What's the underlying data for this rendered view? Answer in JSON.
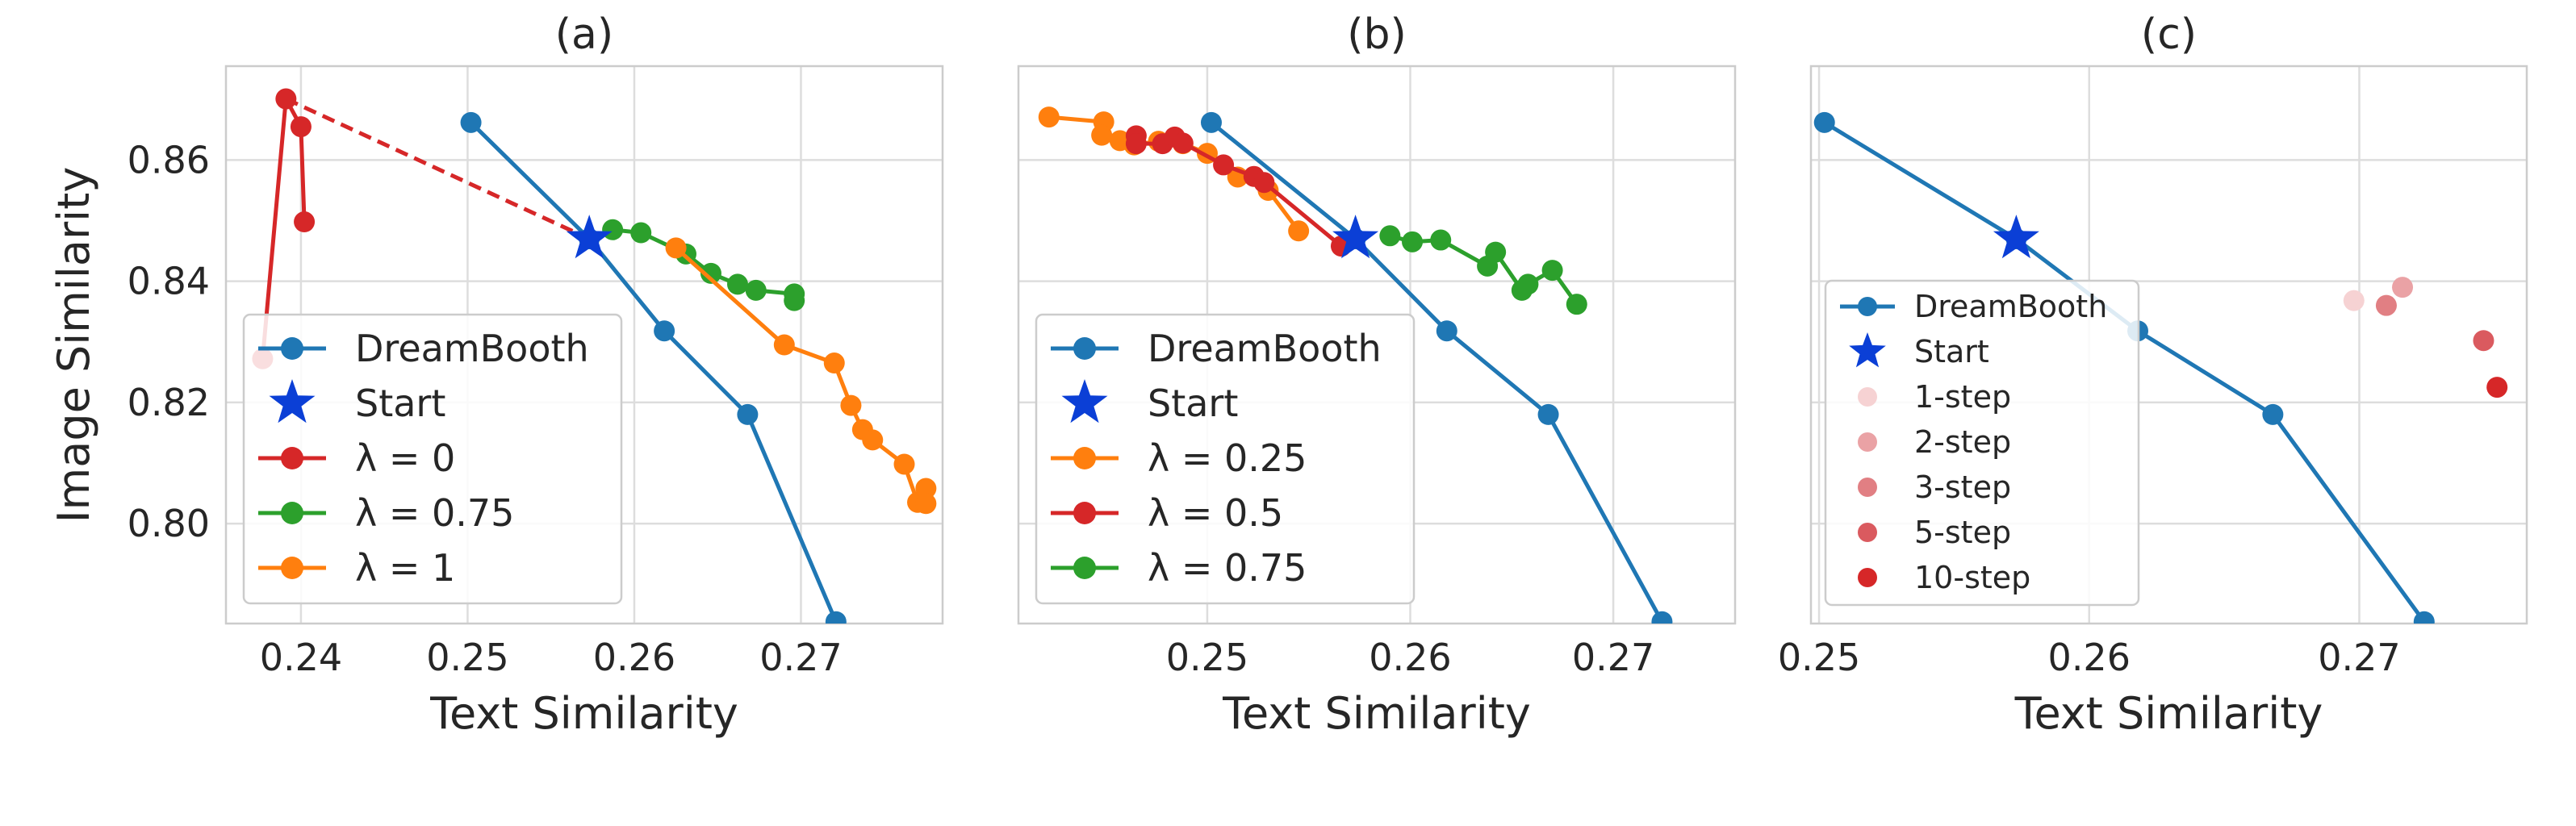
{
  "chart_data": [
    {
      "type": "line",
      "title": "(a)",
      "xlabel": "Text Similarity",
      "ylabel": "Image Similarity",
      "xlim": [
        0.2355,
        0.2785
      ],
      "ylim": [
        0.7835,
        0.8755
      ],
      "xticks": [
        0.24,
        0.25,
        0.26,
        0.27
      ],
      "xtick_labels": [
        "0.24",
        "0.25",
        "0.26",
        "0.27"
      ],
      "yticks": [
        0.8,
        0.82,
        0.84,
        0.86
      ],
      "ytick_labels": [
        "0.80",
        "0.82",
        "0.84",
        "0.86"
      ],
      "grid": true,
      "legend_position": "lower-left",
      "series": [
        {
          "name": "DreamBooth",
          "color": "#1f77b4",
          "marker": "circle",
          "x": [
            0.2502,
            0.2573,
            0.2618,
            0.2668,
            0.2721
          ],
          "y": [
            0.8662,
            0.847,
            0.8318,
            0.818,
            0.7838
          ]
        },
        {
          "name": "Start",
          "color": "#0b3fd6",
          "marker": "star",
          "x": [
            0.2573
          ],
          "y": [
            0.847
          ]
        },
        {
          "name": "λ = 0",
          "color": "#d62728",
          "marker": "circle",
          "x": [
            0.2377,
            0.2391,
            0.24,
            0.2402
          ],
          "y": [
            0.8272,
            0.8701,
            0.8655,
            0.8498
          ]
        },
        {
          "name": "λ = 0.75",
          "color": "#2ca02c",
          "marker": "circle",
          "x": [
            0.2587,
            0.2604,
            0.2631,
            0.2646,
            0.2662,
            0.2673,
            0.2696,
            0.2696
          ],
          "y": [
            0.8485,
            0.848,
            0.8445,
            0.8413,
            0.8395,
            0.8385,
            0.8379,
            0.8368
          ]
        },
        {
          "name": "λ = 1",
          "color": "#ff7f0e",
          "marker": "circle",
          "x": [
            0.2625,
            0.269,
            0.272,
            0.273,
            0.2737,
            0.2743,
            0.2762,
            0.277,
            0.2775,
            0.2775
          ],
          "y": [
            0.8455,
            0.8295,
            0.8265,
            0.8195,
            0.8155,
            0.8138,
            0.8098,
            0.8035,
            0.8058,
            0.8033
          ]
        }
      ],
      "dashed_connector": {
        "color": "#d62728",
        "from": [
          0.2391,
          0.8701
        ],
        "to": [
          0.2573,
          0.847
        ]
      }
    },
    {
      "type": "line",
      "title": "(b)",
      "xlabel": "Text Similarity",
      "ylabel": "",
      "xlim": [
        0.2407,
        0.276
      ],
      "ylim": [
        0.7835,
        0.8755
      ],
      "xticks": [
        0.25,
        0.26,
        0.27
      ],
      "xtick_labels": [
        "0.25",
        "0.26",
        "0.27"
      ],
      "yticks": [
        0.8,
        0.82,
        0.84,
        0.86
      ],
      "ytick_labels": [],
      "grid": true,
      "legend_position": "lower-left",
      "series": [
        {
          "name": "DreamBooth",
          "color": "#1f77b4",
          "marker": "circle",
          "x": [
            0.2502,
            0.2573,
            0.2618,
            0.2668,
            0.2724
          ],
          "y": [
            0.8662,
            0.847,
            0.8318,
            0.818,
            0.7838
          ]
        },
        {
          "name": "Start",
          "color": "#0b3fd6",
          "marker": "star",
          "x": [
            0.2573
          ],
          "y": [
            0.847
          ]
        },
        {
          "name": "λ = 0.25",
          "color": "#ff7f0e",
          "marker": "circle",
          "x": [
            0.2422,
            0.2449,
            0.2448,
            0.2457,
            0.2464,
            0.2476,
            0.2488,
            0.25,
            0.2515,
            0.253,
            0.2545
          ],
          "y": [
            0.8671,
            0.8663,
            0.8641,
            0.8632,
            0.8625,
            0.8631,
            0.8627,
            0.8611,
            0.8572,
            0.855,
            0.8483
          ]
        },
        {
          "name": "λ = 0.5",
          "color": "#d62728",
          "marker": "circle",
          "x": [
            0.2465,
            0.2465,
            0.2478,
            0.2484,
            0.2488,
            0.2508,
            0.2523,
            0.2528,
            0.2566
          ],
          "y": [
            0.864,
            0.8627,
            0.8627,
            0.8638,
            0.8628,
            0.8592,
            0.8573,
            0.8563,
            0.8458
          ]
        },
        {
          "name": "λ = 0.75",
          "color": "#2ca02c",
          "marker": "circle",
          "x": [
            0.259,
            0.2601,
            0.2615,
            0.2638,
            0.2642,
            0.2655,
            0.2658,
            0.267,
            0.2682
          ],
          "y": [
            0.8475,
            0.8465,
            0.8468,
            0.8425,
            0.8448,
            0.8385,
            0.8395,
            0.8418,
            0.8362
          ]
        }
      ]
    },
    {
      "type": "scatter",
      "title": "(c)",
      "xlabel": "Text Similarity",
      "ylabel": "",
      "xlim": [
        0.2497,
        0.2762
      ],
      "ylim": [
        0.7835,
        0.8755
      ],
      "xticks": [
        0.25,
        0.26,
        0.27
      ],
      "xtick_labels": [
        "0.25",
        "0.26",
        "0.27"
      ],
      "yticks": [
        0.8,
        0.82,
        0.84,
        0.86
      ],
      "ytick_labels": [],
      "grid": true,
      "legend_position": "center-left",
      "series": [
        {
          "name": "DreamBooth",
          "color": "#1f77b4",
          "marker": "circle",
          "line": true,
          "x": [
            0.2502,
            0.2573,
            0.2618,
            0.2668,
            0.2724
          ],
          "y": [
            0.8662,
            0.847,
            0.8318,
            0.818,
            0.7838
          ]
        },
        {
          "name": "Start",
          "color": "#0b3fd6",
          "marker": "star",
          "x": [
            0.2573
          ],
          "y": [
            0.847
          ]
        },
        {
          "name": "1-step",
          "color": "#f6d2d3",
          "marker": "circle",
          "x": [
            0.2698
          ],
          "y": [
            0.8368
          ]
        },
        {
          "name": "2-step",
          "color": "#eaa2a5",
          "marker": "circle",
          "x": [
            0.2716
          ],
          "y": [
            0.839
          ]
        },
        {
          "name": "3-step",
          "color": "#e17f83",
          "marker": "circle",
          "x": [
            0.271
          ],
          "y": [
            0.836
          ]
        },
        {
          "name": "5-step",
          "color": "#da5a5f",
          "marker": "circle",
          "x": [
            0.2746
          ],
          "y": [
            0.8302
          ]
        },
        {
          "name": "10-step",
          "color": "#d62728",
          "marker": "circle",
          "x": [
            0.2751
          ],
          "y": [
            0.8225
          ]
        }
      ]
    }
  ]
}
